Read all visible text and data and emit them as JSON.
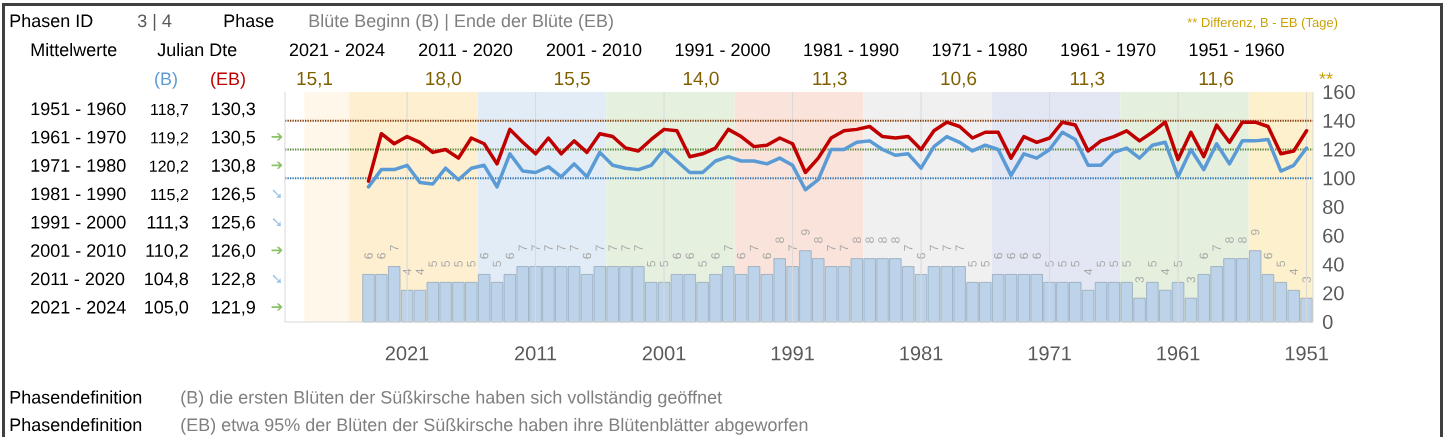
{
  "chart_data": {
    "type": "line",
    "annotations": [
      "Phasen ID",
      "3 | 4",
      "Phase",
      "Blüte Beginn (B) | Ende der Blüte (EB)",
      "** Differenz, B - EB (Tage)",
      "Mittelwerte",
      "Julian Dte",
      "2021 - 2024",
      "2011 - 2020",
      "2001 - 2010",
      "1991 - 2000",
      "1981 - 1990",
      "1971 - 1980",
      "1961 - 1970",
      "1951 - 1960",
      "15,1",
      "18,0",
      "15,5",
      "14,0",
      "11,3",
      "10,6",
      "11,3",
      "11,6",
      "**",
      "1951 - 1960",
      "1961 - 1970",
      "1971 - 1980",
      "1981 - 1990",
      "1991 - 2000",
      "2001 - 2010",
      "2011 - 2020",
      "2021 - 2024",
      "118,7",
      "119,2",
      "120,2",
      "115,2",
      "111,3",
      "110,2",
      "104,8",
      "105,0",
      "130,3",
      "130,5",
      "130,8",
      "126,5",
      "125,6",
      "126,0",
      "122,8",
      "121,9",
      "➔",
      "➔",
      "➘",
      "➘",
      "➔",
      "➘",
      "➔",
      "Phasendefinition",
      "(B) die ersten Blüten der Süßkirsche haben sich vollständig geöffnet",
      "Phasendefinition",
      "(EB) etwa 95% der Blüten der Süßkirsche haben ihre Blütenblätter abgeworfen"
    ],
    "x": [
      2024,
      2023,
      2022,
      2021,
      2020,
      2019,
      2018,
      2017,
      2016,
      2015,
      2014,
      2013,
      2012,
      2011,
      2010,
      2009,
      2008,
      2007,
      2006,
      2005,
      2004,
      2003,
      2002,
      2001,
      2000,
      1999,
      1998,
      1997,
      1996,
      1995,
      1994,
      1993,
      1992,
      1991,
      1990,
      1989,
      1988,
      1987,
      1986,
      1985,
      1984,
      1983,
      1982,
      1981,
      1980,
      1979,
      1978,
      1977,
      1976,
      1975,
      1974,
      1973,
      1972,
      1971,
      1970,
      1969,
      1968,
      1967,
      1966,
      1965,
      1964,
      1963,
      1962,
      1961,
      1960,
      1959,
      1958,
      1957,
      1956,
      1955,
      1954,
      1953,
      1952,
      1951
    ],
    "xlim": [
      2030.5,
      1950.5
    ],
    "xticks": [
      2021,
      2011,
      2001,
      1991,
      1981,
      1971,
      1961,
      1951
    ],
    "ylim": [
      0,
      160
    ],
    "yticks": [
      0,
      20,
      40,
      60,
      80,
      100,
      120,
      140,
      160
    ],
    "grid": "x",
    "series": [
      {
        "name": "(B)",
        "color": "#5b9bd5",
        "values": [
          94,
          106,
          106,
          109,
          97,
          96,
          107,
          99,
          107,
          109,
          94,
          117,
          105,
          104,
          108,
          101,
          110,
          101,
          118,
          109,
          107,
          106,
          109,
          120,
          112,
          104,
          104,
          112,
          115,
          112,
          112,
          110,
          114,
          109,
          92,
          99,
          120,
          120,
          125,
          126,
          120,
          116,
          117,
          107,
          122,
          129,
          125,
          119,
          123,
          120,
          102,
          117,
          114,
          120,
          132,
          127,
          109,
          109,
          118,
          121,
          114,
          123,
          125,
          101,
          120,
          106,
          124,
          110,
          126,
          126,
          127,
          105,
          109,
          121
        ]
      },
      {
        "name": "(EB)",
        "color": "#c00000",
        "values": [
          98,
          131,
          124,
          129,
          125,
          118,
          120,
          114,
          128,
          124,
          110,
          134,
          125,
          117,
          128,
          117,
          126,
          118,
          131,
          129,
          121,
          119,
          127,
          134,
          133,
          115,
          117,
          121,
          134,
          129,
          122,
          123,
          128,
          124,
          104,
          114,
          128,
          133,
          134,
          136,
          129,
          128,
          129,
          120,
          133,
          139,
          136,
          128,
          132,
          132,
          114,
          129,
          125,
          128,
          139,
          137,
          119,
          126,
          129,
          133,
          126,
          132,
          139,
          113,
          132,
          115,
          137,
          125,
          139,
          139,
          136,
          117,
          119,
          133
        ]
      },
      {
        "type": "bar",
        "axis": "y2",
        "color": "#bcd3ea",
        "values": [
          6,
          6,
          7,
          4,
          4,
          5,
          5,
          5,
          5,
          6,
          5,
          6,
          7,
          7,
          7,
          7,
          7,
          6,
          7,
          7,
          7,
          7,
          5,
          5,
          6,
          6,
          5,
          6,
          7,
          6,
          7,
          6,
          8,
          7,
          9,
          8,
          7,
          7,
          8,
          8,
          8,
          8,
          7,
          6,
          7,
          7,
          7,
          5,
          5,
          6,
          6,
          6,
          6,
          5,
          5,
          5,
          4,
          5,
          5,
          5,
          3,
          5,
          4,
          5,
          3,
          6,
          7,
          8,
          8,
          9,
          6,
          5,
          4,
          3
        ],
        "value_labels": [
          "6",
          "6",
          "7",
          "4",
          "4",
          "5",
          "5",
          "5",
          "5",
          "6",
          "5",
          "6",
          "7",
          "7",
          "7",
          "7",
          "7",
          "6",
          "7",
          "7",
          "7",
          "7",
          "5",
          "5",
          "6",
          "6",
          "5",
          "6",
          "7",
          "6",
          "7",
          "6",
          "8",
          "7",
          "9",
          "8",
          "7",
          "7",
          "8",
          "8",
          "8",
          "8",
          "7",
          "6",
          "7",
          "7",
          "7",
          "5",
          "5",
          "6",
          "6",
          "6",
          "6",
          "5",
          "5",
          "5",
          "4",
          "5",
          "5",
          "5",
          "3",
          "5",
          "4",
          "5",
          "3",
          "6",
          "7",
          "8",
          "8",
          "9",
          "6",
          "5",
          "4",
          "3"
        ]
      }
    ],
    "ref_lines": [
      {
        "axis": "y",
        "value": 140,
        "color": "#843c0c",
        "line_style": "dotted"
      },
      {
        "axis": "y",
        "value": 120,
        "color": "#548235",
        "line_style": "dotted"
      },
      {
        "axis": "y",
        "value": 100,
        "color": "#2e75b6",
        "line_style": "dotted"
      }
    ],
    "bands": [
      {
        "axis": "x",
        "from": 2029,
        "to": 2025.5,
        "color": "#fff8ea"
      },
      {
        "axis": "x",
        "from": 2025.5,
        "to": 2015.5,
        "color": "#fdefd0"
      },
      {
        "axis": "x",
        "from": 2015.5,
        "to": 2005.5,
        "color": "#e2ecf6"
      },
      {
        "axis": "x",
        "from": 2005.5,
        "to": 1995.5,
        "color": "#e6f0df"
      },
      {
        "axis": "x",
        "from": 1995.5,
        "to": 1985.5,
        "color": "#f9e3da"
      },
      {
        "axis": "x",
        "from": 1985.5,
        "to": 1975.5,
        "color": "#f1f0f1"
      },
      {
        "axis": "x",
        "from": 1975.5,
        "to": 1965.5,
        "color": "#e3e7f4"
      },
      {
        "axis": "x",
        "from": 1965.5,
        "to": 1955.5,
        "color": "#e4efde"
      },
      {
        "axis": "x",
        "from": 1955.5,
        "to": 1950.5,
        "color": "#fdf0cd"
      }
    ]
  }
}
